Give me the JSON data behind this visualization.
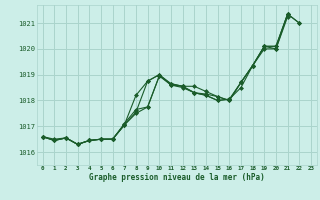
{
  "background_color": "#cceee8",
  "grid_color": "#aad4cc",
  "line_color": "#1a5c2a",
  "xlabel": "Graphe pression niveau de la mer (hPa)",
  "ylim": [
    1015.5,
    1021.7
  ],
  "xlim": [
    -0.5,
    23.5
  ],
  "yticks": [
    1016,
    1017,
    1018,
    1019,
    1020,
    1021
  ],
  "xticks": [
    0,
    1,
    2,
    3,
    4,
    5,
    6,
    7,
    8,
    9,
    10,
    11,
    12,
    13,
    14,
    15,
    16,
    17,
    18,
    19,
    20,
    21,
    22,
    23
  ],
  "series": [
    [
      1016.6,
      1016.45,
      1016.55,
      1016.3,
      1016.45,
      1016.5,
      1016.5,
      1017.05,
      1018.2,
      1018.75,
      1019.0,
      1018.65,
      1018.55,
      1018.3,
      1018.25,
      1018.15,
      1018.0,
      1018.7,
      1019.35,
      1020.1,
      1020.1,
      1021.35,
      1021.0,
      null
    ],
    [
      1016.6,
      1016.45,
      1016.55,
      1016.3,
      1016.45,
      1016.5,
      1016.5,
      1017.1,
      1017.65,
      1017.75,
      1018.95,
      1018.65,
      1018.55,
      1018.55,
      1018.35,
      1018.15,
      1018.0,
      1018.7,
      1019.35,
      1020.1,
      1020.1,
      1021.35,
      null,
      null
    ],
    [
      1016.6,
      1016.45,
      1016.55,
      1016.3,
      1016.45,
      1016.5,
      1016.5,
      1017.05,
      1017.5,
      1017.75,
      1018.95,
      1018.6,
      1018.5,
      1018.3,
      1018.2,
      1018.0,
      1018.05,
      1018.5,
      1019.35,
      1020.0,
      1020.0,
      1021.25,
      null,
      null
    ],
    [
      1016.6,
      1016.5,
      1016.55,
      1016.3,
      1016.45,
      1016.5,
      1016.5,
      1017.05,
      1017.55,
      1018.75,
      1019.0,
      1018.6,
      1018.55,
      1018.3,
      1018.2,
      1018.0,
      1018.05,
      1018.7,
      1019.35,
      1020.1,
      1020.0,
      1021.35,
      1021.0,
      null
    ]
  ]
}
